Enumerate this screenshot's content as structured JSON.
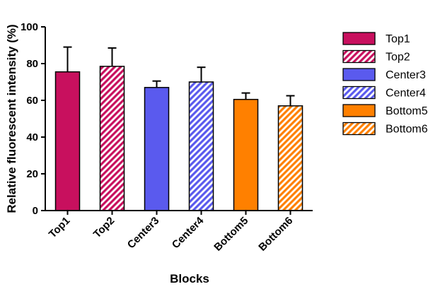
{
  "chart_data": {
    "type": "bar",
    "title": "",
    "xlabel": "Blocks",
    "ylabel": "Relative fluorescent intensity (%)",
    "ylim": [
      0,
      100
    ],
    "yticks": [
      0,
      20,
      40,
      60,
      80,
      100
    ],
    "grid": false,
    "legend_position": "right",
    "categories": [
      "Top1",
      "Top2",
      "Center3",
      "Center4",
      "Bottom5",
      "Bottom6"
    ],
    "values": [
      75.5,
      78.5,
      67,
      70,
      60.5,
      57
    ],
    "errors": [
      13.5,
      10,
      3.5,
      8,
      3.5,
      5.5
    ],
    "colors": [
      "#c8105e",
      "#c8105e",
      "#5a5aee",
      "#5a5aee",
      "#ff8000",
      "#ff8000"
    ],
    "hatched": [
      false,
      true,
      false,
      true,
      false,
      true
    ],
    "legend": [
      "Top1",
      "Top2",
      "Center3",
      "Center4",
      "Bottom5",
      "Bottom6"
    ]
  }
}
